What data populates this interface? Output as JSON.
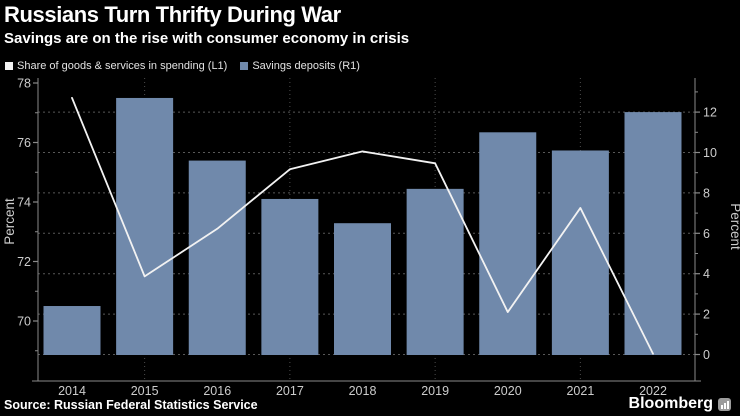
{
  "footer": {
    "source": "Source: Russian Federal Statistics Service",
    "brand": "Bloomberg"
  },
  "colors": {
    "background": "#000000",
    "bar_fill": "#7089ab",
    "line_stroke": "#f2f2f2",
    "grid_h": "#585858",
    "grid_v": "#4c4c4c",
    "axis": "#8a8a8a",
    "tick_text": "#cccccc",
    "title_text": "#ffffff"
  },
  "chart_data": {
    "type": "bar",
    "title": "Russians Turn Thrifty During War",
    "subtitle": "Savings are on the rise with consumer economy in crisis",
    "categories": [
      "2014",
      "2015",
      "2016",
      "2017",
      "2018",
      "2019",
      "2020",
      "2021",
      "2022"
    ],
    "series": [
      {
        "name": "Share of goods & services in spending (L1)",
        "type": "line",
        "axis": "left",
        "color": "#f2f2f2",
        "values": [
          77.5,
          71.5,
          73.1,
          75.1,
          75.7,
          75.3,
          70.3,
          73.8,
          68.9
        ]
      },
      {
        "name": "Savings deposits (R1)",
        "type": "bar",
        "axis": "right",
        "color": "#7089ab",
        "values": [
          2.4,
          12.7,
          9.6,
          7.7,
          6.5,
          8.2,
          11.0,
          10.1,
          12.0
        ]
      }
    ],
    "left_axis": {
      "label": "Percent",
      "major_ticks": [
        78,
        76,
        74,
        72,
        70
      ],
      "minor_ticks": [
        77,
        75,
        73,
        71,
        69
      ],
      "range": [
        68.0,
        78.2
      ]
    },
    "right_axis": {
      "label": "Percent",
      "major_ticks": [
        12,
        10,
        8,
        6,
        4,
        2,
        0
      ],
      "minor_ticks": [
        13,
        11,
        9,
        7,
        5,
        3,
        1
      ],
      "gridlines": [
        12,
        10,
        8,
        6,
        4,
        2,
        0
      ],
      "range": [
        -1.3,
        13.7
      ]
    },
    "x_axis": {
      "gridline_years": [
        "2015",
        "2017",
        "2019",
        "2021"
      ]
    },
    "legend_position": "top-left",
    "grid": "on"
  }
}
